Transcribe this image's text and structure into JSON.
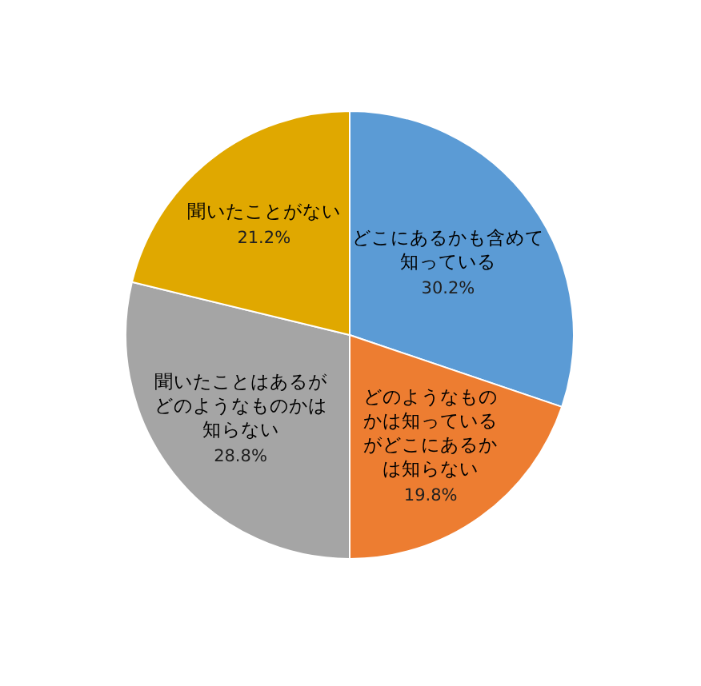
{
  "chart_data": {
    "type": "pie",
    "categories": [
      "どこにあるかも含めて知っている",
      "どのようなものかは知っているがどこにあるかは知らない",
      "聞いたことはあるがどのようなものかは知らない",
      "聞いたことがない"
    ],
    "values": [
      30.2,
      19.8,
      28.8,
      21.2
    ],
    "colors": [
      "#5b9bd5",
      "#ed7d31",
      "#a5a5a5",
      "#e0a800"
    ],
    "value_labels": [
      "30.2%",
      "19.8%",
      "28.8%",
      "21.2%"
    ]
  }
}
